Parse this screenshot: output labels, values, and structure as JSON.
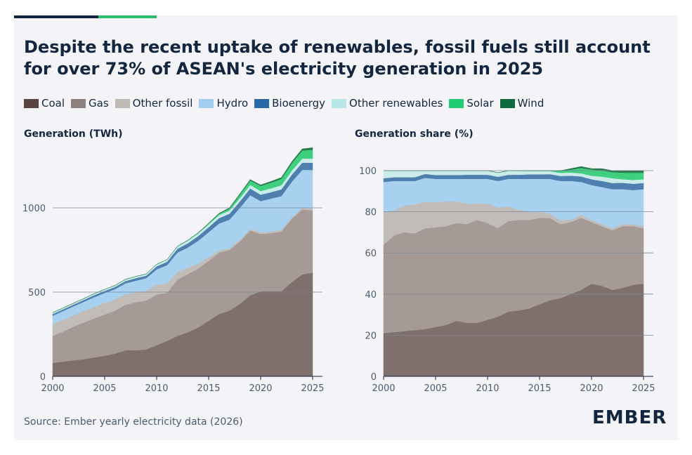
{
  "title": "Despite the recent uptake of renewables, fossil fuels still account for over 73% of ASEAN's electricity generation in 2025",
  "legend": [
    {
      "name": "Coal",
      "color": "#5a4442"
    },
    {
      "name": "Gas",
      "color": "#8d807d"
    },
    {
      "name": "Other fossil",
      "color": "#c0bab6"
    },
    {
      "name": "Hydro",
      "color": "#a3cdee"
    },
    {
      "name": "Bioenergy",
      "color": "#2a69a8"
    },
    {
      "name": "Other renewables",
      "color": "#b6e6e6"
    },
    {
      "name": "Solar",
      "color": "#22cc70"
    },
    {
      "name": "Wind",
      "color": "#0f6a3e"
    }
  ],
  "source": "Source: Ember yearly electricity data (2026)",
  "logo": "EMBER",
  "chart_data": [
    {
      "type": "area",
      "stacked": true,
      "title": "Generation (TWh)",
      "xlim": [
        2000,
        2025
      ],
      "ylim": [
        0,
        1400
      ],
      "x_ticks": [
        2000,
        2005,
        2010,
        2015,
        2020,
        2025
      ],
      "y_ticks": [
        0,
        500,
        1000
      ],
      "grid": true,
      "x": [
        2000,
        2001,
        2002,
        2003,
        2004,
        2005,
        2006,
        2007,
        2008,
        2009,
        2010,
        2011,
        2012,
        2013,
        2014,
        2015,
        2016,
        2017,
        2018,
        2019,
        2020,
        2021,
        2022,
        2023,
        2024,
        2025
      ],
      "series": [
        {
          "name": "Coal",
          "color": "#7f706d",
          "values": [
            80,
            88,
            95,
            102,
            112,
            122,
            135,
            155,
            155,
            160,
            185,
            210,
            240,
            262,
            290,
            330,
            370,
            390,
            430,
            480,
            505,
            505,
            505,
            560,
            605,
            615
          ]
        },
        {
          "name": "Gas",
          "color": "#a69a96",
          "values": [
            160,
            178,
            200,
            218,
            232,
            245,
            255,
            270,
            285,
            290,
            300,
            285,
            335,
            345,
            350,
            355,
            365,
            360,
            370,
            385,
            340,
            345,
            355,
            375,
            385,
            370
          ]
        },
        {
          "name": "Other fossil",
          "color": "#c2bcb8",
          "values": [
            70,
            70,
            68,
            68,
            68,
            68,
            66,
            62,
            58,
            58,
            60,
            55,
            45,
            38,
            30,
            20,
            12,
            10,
            10,
            10,
            10,
            10,
            10,
            10,
            10,
            10
          ]
        },
        {
          "name": "Hydro",
          "color": "#a8d0ef",
          "values": [
            50,
            52,
            53,
            55,
            58,
            60,
            62,
            65,
            70,
            75,
            90,
            110,
            115,
            120,
            135,
            150,
            160,
            170,
            190,
            200,
            185,
            195,
            200,
            210,
            225,
            230
          ]
        },
        {
          "name": "Bioenergy",
          "color": "#4f7fae",
          "values": [
            10,
            10,
            10,
            11,
            12,
            12,
            13,
            14,
            15,
            15,
            18,
            20,
            22,
            25,
            28,
            30,
            32,
            35,
            38,
            40,
            38,
            38,
            40,
            42,
            43,
            43
          ]
        },
        {
          "name": "Other renewables",
          "color": "#c9ebea",
          "values": [
            8,
            8,
            8,
            8,
            9,
            9,
            9,
            10,
            10,
            10,
            12,
            13,
            14,
            15,
            16,
            17,
            18,
            19,
            20,
            21,
            22,
            23,
            24,
            24,
            24,
            25
          ]
        },
        {
          "name": "Solar",
          "color": "#3fcf7f",
          "values": [
            0,
            0,
            0,
            0,
            0,
            0,
            0,
            0,
            0,
            0,
            0,
            0,
            1,
            2,
            3,
            5,
            8,
            12,
            20,
            26,
            30,
            34,
            38,
            44,
            48,
            52
          ]
        },
        {
          "name": "Wind",
          "color": "#2a7a4e",
          "values": [
            0,
            0,
            0,
            0,
            0,
            0,
            0,
            0,
            0,
            0,
            0,
            0,
            0,
            1,
            1,
            2,
            3,
            4,
            5,
            6,
            6,
            7,
            8,
            9,
            10,
            12
          ]
        }
      ]
    },
    {
      "type": "area",
      "stacked": true,
      "title": "Generation share (%)",
      "xlim": [
        2000,
        2025
      ],
      "ylim": [
        0,
        100
      ],
      "x_ticks": [
        2000,
        2005,
        2010,
        2015,
        2020,
        2025
      ],
      "y_ticks": [
        0,
        20,
        40,
        60,
        80,
        100
      ],
      "grid": true,
      "x": [
        2000,
        2001,
        2002,
        2003,
        2004,
        2005,
        2006,
        2007,
        2008,
        2009,
        2010,
        2011,
        2012,
        2013,
        2014,
        2015,
        2016,
        2017,
        2018,
        2019,
        2020,
        2021,
        2022,
        2023,
        2024,
        2025
      ],
      "series": [
        {
          "name": "Coal",
          "color": "#7f706d",
          "values": [
            21,
            21.5,
            22,
            22.5,
            23,
            24,
            25,
            27,
            26,
            26,
            27.5,
            29,
            31.5,
            32,
            33,
            35,
            37,
            38,
            40,
            42,
            45,
            44,
            42,
            43,
            44.5,
            45
          ]
        },
        {
          "name": "Gas",
          "color": "#a69a96",
          "values": [
            43,
            47,
            48,
            47,
            49,
            48.5,
            48,
            47.5,
            48,
            50,
            47,
            43,
            44,
            44,
            43,
            42,
            40,
            36,
            35,
            35,
            30,
            29,
            29,
            30,
            28.5,
            27
          ]
        },
        {
          "name": "Other fossil",
          "color": "#c2bcb8",
          "values": [
            16,
            12,
            13,
            14,
            13,
            12,
            12,
            10.5,
            10,
            8,
            9.5,
            10,
            7,
            5,
            4,
            3,
            2,
            2,
            1,
            1.5,
            1,
            1,
            1,
            1,
            1,
            1
          ]
        },
        {
          "name": "Hydro",
          "color": "#a8d0ef",
          "values": [
            14.5,
            14.5,
            12,
            11.5,
            11.5,
            11.5,
            11,
            11,
            12,
            12,
            12,
            13,
            13.5,
            15,
            16,
            16,
            17,
            19,
            19,
            16,
            17,
            18,
            19,
            17,
            16.5,
            18
          ]
        },
        {
          "name": "Bioenergy",
          "color": "#4f7fae",
          "values": [
            1.8,
            1.8,
            1.8,
            1.8,
            1.9,
            1.9,
            1.9,
            1.9,
            2,
            2,
            2,
            2,
            2,
            2,
            2.2,
            2.2,
            2.3,
            2.4,
            2.5,
            2.7,
            2.8,
            3,
            3,
            3.1,
            3.1,
            3
          ]
        },
        {
          "name": "Other renewables",
          "color": "#c9ebea",
          "values": [
            3.7,
            3.2,
            3.2,
            3.2,
            1.6,
            2.1,
            2.1,
            2.1,
            2,
            2,
            2,
            2,
            1.9,
            1.9,
            1.6,
            1.6,
            1.5,
            1.5,
            1.6,
            1.5,
            1.7,
            2.1,
            2.3,
            1.7,
            1.9,
            1.8
          ]
        },
        {
          "name": "Solar",
          "color": "#3fcf7f",
          "values": [
            0,
            0,
            0,
            0,
            0,
            0,
            0,
            0,
            0,
            0,
            0,
            0,
            0.1,
            0.1,
            0.2,
            0.2,
            0.2,
            0.9,
            1.4,
            2.6,
            3,
            3,
            3,
            3.2,
            3.5,
            3.2
          ]
        },
        {
          "name": "Wind",
          "color": "#2a7a4e",
          "values": [
            0,
            0,
            0,
            0,
            0,
            0,
            0,
            0,
            0,
            0,
            0,
            0,
            0,
            0,
            0,
            0,
            0,
            0.2,
            0.5,
            0.7,
            0.5,
            0.9,
            0.7,
            1,
            1,
            1
          ]
        }
      ]
    }
  ]
}
